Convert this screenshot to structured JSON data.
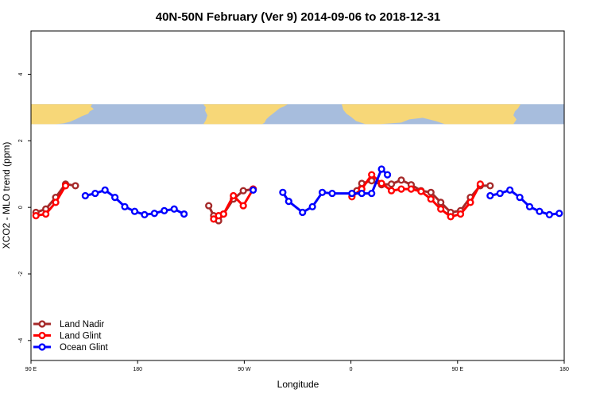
{
  "chart_data": {
    "type": "line",
    "title": "40N-50N February (Ver 9)   2014-09-06 to 2018-12-31",
    "xlabel": "Longitude",
    "ylabel": "XCO2 - MLO trend (ppm)",
    "xlim": [
      -90,
      180
    ],
    "ylim": [
      -4.6,
      5.3
    ],
    "x_ticks": [
      {
        "value": -90,
        "label": "90 E"
      },
      {
        "value": -36,
        "label": "180"
      },
      {
        "value": 18,
        "label": "90 W"
      },
      {
        "value": 72,
        "label": "0"
      },
      {
        "value": 126,
        "label": "90 E"
      },
      {
        "value": 180,
        "label": "180"
      }
    ],
    "y_ticks": [
      {
        "value": -4,
        "label": "-4"
      },
      {
        "value": -2,
        "label": "-2"
      },
      {
        "value": 0,
        "label": "0"
      },
      {
        "value": 2,
        "label": "2"
      },
      {
        "value": 4,
        "label": "4"
      }
    ],
    "legend_position": "bottom-left",
    "map_strip": {
      "y_top": 3.1,
      "y_bottom": 2.5,
      "land_color": "#f7d778",
      "ocean_color": "#a7bddd"
    },
    "series": [
      {
        "name": "Land Nadir",
        "color": "#a52a2a",
        "segments": [
          [
            [
              -87.5,
              -0.15
            ],
            [
              -82.5,
              -0.05
            ],
            [
              -77.5,
              0.3
            ],
            [
              -72.5,
              0.7
            ],
            [
              -67.5,
              0.65
            ]
          ],
          [
            [
              0,
              0.05
            ],
            [
              2.5,
              -0.25
            ],
            [
              5,
              -0.4
            ],
            [
              7.5,
              -0.2
            ],
            [
              12.5,
              0.25
            ],
            [
              17.5,
              0.5
            ],
            [
              22.5,
              0.55
            ]
          ],
          [
            [
              75,
              0.5
            ],
            [
              77.5,
              0.72
            ],
            [
              82.5,
              0.8
            ],
            [
              87.5,
              0.68
            ],
            [
              92.5,
              0.7
            ],
            [
              97.5,
              0.82
            ],
            [
              102.5,
              0.68
            ],
            [
              107.5,
              0.5
            ],
            [
              112.5,
              0.45
            ],
            [
              117.5,
              0.15
            ],
            [
              122.5,
              -0.15
            ],
            [
              127.5,
              -0.1
            ],
            [
              132.5,
              0.3
            ],
            [
              137.5,
              0.65
            ],
            [
              142.5,
              0.65
            ]
          ]
        ]
      },
      {
        "name": "Land Glint",
        "color": "#ff0000",
        "segments": [
          [
            [
              -87.5,
              -0.25
            ],
            [
              -82.5,
              -0.2
            ],
            [
              -77.5,
              0.15
            ],
            [
              -72.5,
              0.65
            ]
          ],
          [
            [
              2.5,
              -0.35
            ],
            [
              5,
              -0.25
            ],
            [
              7.5,
              -0.2
            ],
            [
              12.5,
              0.35
            ],
            [
              17.5,
              0.05
            ],
            [
              22.5,
              0.55
            ]
          ],
          [
            [
              72.5,
              0.32
            ],
            [
              77.5,
              0.55
            ],
            [
              82.5,
              0.98
            ],
            [
              87.5,
              0.72
            ],
            [
              92.5,
              0.5
            ],
            [
              97.5,
              0.55
            ],
            [
              102.5,
              0.55
            ],
            [
              107.5,
              0.48
            ],
            [
              112.5,
              0.25
            ],
            [
              117.5,
              -0.05
            ],
            [
              122.5,
              -0.28
            ],
            [
              127.5,
              -0.2
            ],
            [
              132.5,
              0.15
            ],
            [
              137.5,
              0.7
            ]
          ]
        ]
      },
      {
        "name": "Ocean Glint",
        "color": "#0000ff",
        "segments": [
          [
            [
              -62.5,
              0.35
            ],
            [
              -57.5,
              0.42
            ],
            [
              -52.5,
              0.52
            ],
            [
              -47.5,
              0.3
            ],
            [
              -42.5,
              0.02
            ],
            [
              -37.5,
              -0.12
            ],
            [
              -32.5,
              -0.22
            ],
            [
              -27.5,
              -0.18
            ],
            [
              -22.5,
              -0.1
            ],
            [
              -17.5,
              -0.05
            ],
            [
              -12.5,
              -0.2
            ]
          ],
          [
            [
              22.5,
              0.52
            ]
          ],
          [
            [
              37.5,
              0.45
            ],
            [
              40.5,
              0.18
            ],
            [
              47.5,
              -0.15
            ],
            [
              52.5,
              0.02
            ],
            [
              57.5,
              0.45
            ],
            [
              62.5,
              0.42
            ],
            [
              72.5,
              0.42
            ],
            [
              77.5,
              0.42
            ],
            [
              82.5,
              0.42
            ],
            [
              87.5,
              1.15
            ],
            [
              90.5,
              0.98
            ]
          ],
          [
            [
              142.5,
              0.35
            ],
            [
              147.5,
              0.42
            ],
            [
              152.5,
              0.52
            ],
            [
              157.5,
              0.3
            ],
            [
              162.5,
              0.02
            ],
            [
              167.5,
              -0.12
            ],
            [
              172.5,
              -0.22
            ],
            [
              177.5,
              -0.18
            ]
          ]
        ]
      }
    ]
  }
}
